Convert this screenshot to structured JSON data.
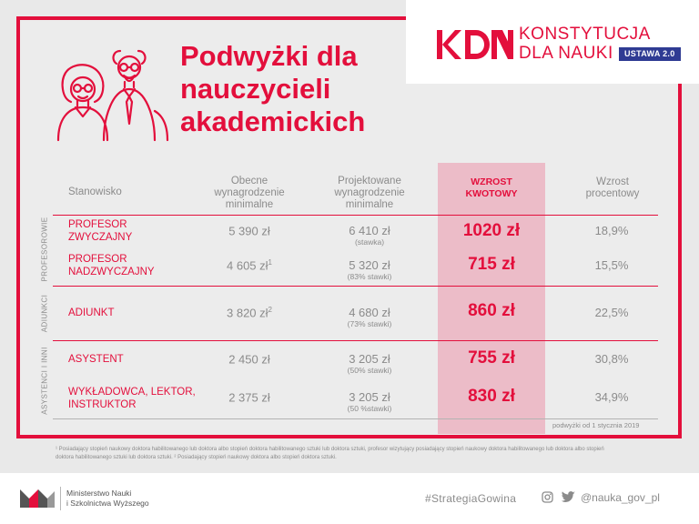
{
  "title": "Podwyżki dla nauczycieli akademickich",
  "logo": {
    "line1": "KONSTYTUCJA",
    "line2": "DLA NAUKI",
    "badge": "USTAWA 2.0",
    "mark_label": "KDN"
  },
  "colors": {
    "accent": "#e30f3c",
    "highlight": "#ecbcc8",
    "badge": "#2f3b93",
    "gray_text": "#8b8b8b"
  },
  "table": {
    "headers": {
      "position": "Stanowisko",
      "current": "Obecne wynagrodzenie minimalne",
      "projected": "Projektowane wynagrodzenie minimalne",
      "amount": "WZROST KWOTOWY",
      "percent": "Wzrost procentowy"
    },
    "groups": {
      "profesorowie": "PROFESOROWIE",
      "adiunkci": "ADIUNKCI",
      "asystenci": "ASYSTENCI I INNI"
    },
    "rows": [
      {
        "position": "PROFESOR ZWYCZAJNY",
        "current": "5 390 zł",
        "current_sup": "",
        "projected": "6 410 zł",
        "projected_note": "(stawka)",
        "amount": "1020 zł",
        "percent": "18,9%"
      },
      {
        "position": "PROFESOR NADZWYCZAJNY",
        "current": "4 605 zł",
        "current_sup": "1",
        "projected": "5 320 zł",
        "projected_note": "(83% stawki)",
        "amount": "715 zł",
        "percent": "15,5%"
      },
      {
        "position": "ADIUNKT",
        "current": "3 820 zł",
        "current_sup": "2",
        "projected": "4 680 zł",
        "projected_note": "(73% stawki)",
        "amount": "860 zł",
        "percent": "22,5%"
      },
      {
        "position": "ASYSTENT",
        "current": "2 450 zł",
        "current_sup": "",
        "projected": "3 205 zł",
        "projected_note": "(50% stawki)",
        "amount": "755 zł",
        "percent": "30,8%"
      },
      {
        "position": "WYKŁADOWCA, LEKTOR, INSTRUKTOR",
        "current": "2 375 zł",
        "current_sup": "",
        "projected": "3 205 zł",
        "projected_note": "(50 %stawki)",
        "amount": "830 zł",
        "percent": "34,9%"
      }
    ],
    "date_note": "podwyżki od 1 stycznia 2019"
  },
  "footnote": "¹ Posiadający stopień naukowy doktora habilitowanego lub doktora albo stopień doktora habilitowanego sztuki lub doktora sztuki, profesor wizytujący posiadający stopień naukowy doktora habilitowanego lub doktora albo stopień doktora habilitowanego sztuki lub doktora sztuki. ² Posiadający stopień naukowy doktora albo stopień doktora sztuki.",
  "bottom": {
    "ministry_line1": "Ministerstwo Nauki",
    "ministry_line2": "i Szkolnictwa Wyższego",
    "hashtag": "#StrategiaGowina",
    "handle": "@nauka_gov_pl"
  }
}
